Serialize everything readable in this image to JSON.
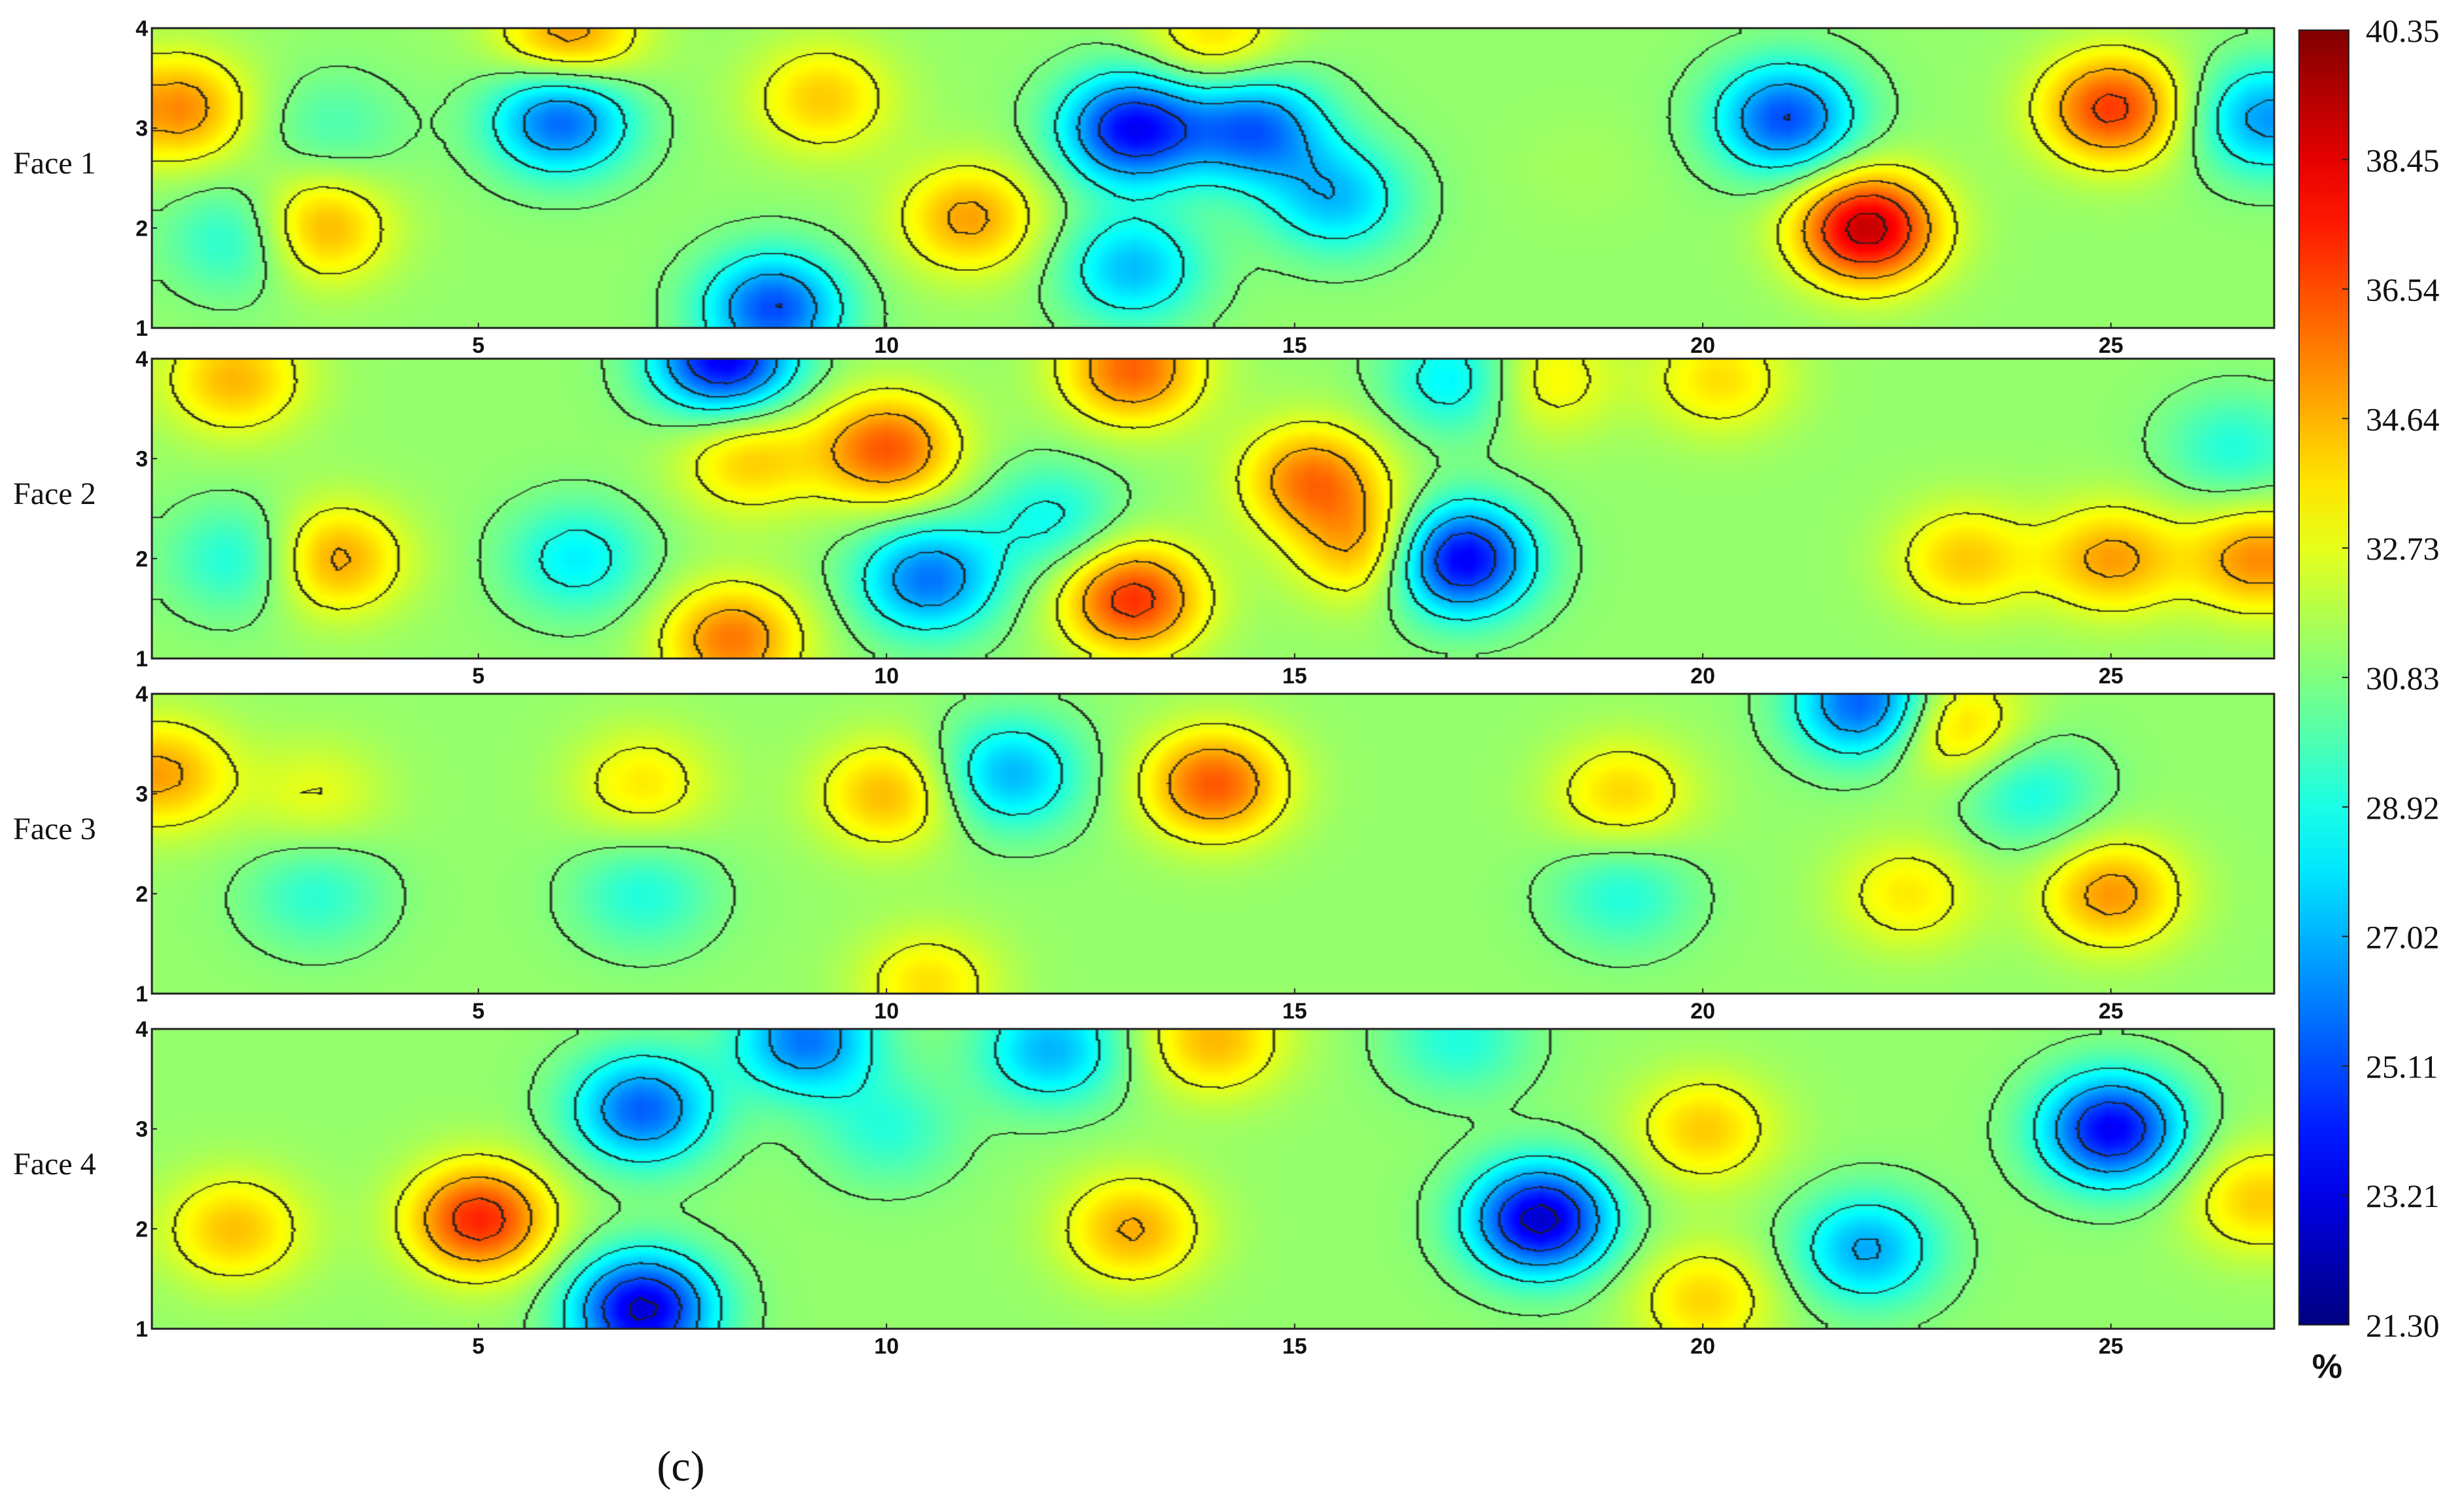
{
  "chart_data": {
    "type": "heatmap",
    "style": "filled-contour",
    "caption": "(c)",
    "unit": "%",
    "x_range": [
      1,
      27
    ],
    "y_range": [
      1,
      4
    ],
    "x_ticks": [
      5,
      10,
      15,
      20,
      25
    ],
    "y_ticks": [
      1,
      2,
      3,
      4
    ],
    "colorbar": {
      "min": 21.3,
      "max": 40.35,
      "ticks": [
        "40.35",
        "38.45",
        "36.54",
        "34.64",
        "32.73",
        "30.83",
        "28.92",
        "27.02",
        "25.11",
        "23.21",
        "21.30"
      ],
      "colormap": "jet"
    },
    "base_value": 31.2,
    "panels": [
      {
        "name": "Face 1",
        "features": [
          {
            "x": 1.3,
            "y": 3.2,
            "value": 35.5
          },
          {
            "x": 6.1,
            "y": 3.9,
            "value": 35.5
          },
          {
            "x": 9.2,
            "y": 3.3,
            "value": 34.2
          },
          {
            "x": 14.0,
            "y": 3.9,
            "value": 34.0
          },
          {
            "x": 2.1,
            "y": 1.9,
            "value": 28.5
          },
          {
            "x": 3.0,
            "y": 2.0,
            "value": 35.2
          },
          {
            "x": 3.2,
            "y": 3.0,
            "value": 29.8
          },
          {
            "x": 6.0,
            "y": 3.1,
            "value": 25.2
          },
          {
            "x": 8.6,
            "y": 1.2,
            "value": 25.0
          },
          {
            "x": 11.0,
            "y": 2.1,
            "value": 35.0
          },
          {
            "x": 13.0,
            "y": 3.0,
            "value": 23.6
          },
          {
            "x": 13.0,
            "y": 1.6,
            "value": 27.2
          },
          {
            "x": 14.5,
            "y": 3.0,
            "value": 25.5
          },
          {
            "x": 15.5,
            "y": 2.3,
            "value": 27.3
          },
          {
            "x": 21.0,
            "y": 3.1,
            "value": 25.0
          },
          {
            "x": 22.0,
            "y": 2.0,
            "value": 39.2
          },
          {
            "x": 25.0,
            "y": 3.2,
            "value": 37.0
          },
          {
            "x": 26.9,
            "y": 3.1,
            "value": 26.5
          },
          {
            "x": 18.5,
            "y": 2.6,
            "value": 31.5
          }
        ]
      },
      {
        "name": "Face 2",
        "features": [
          {
            "x": 2.0,
            "y": 3.8,
            "value": 34.6
          },
          {
            "x": 2.1,
            "y": 2.0,
            "value": 28.6
          },
          {
            "x": 3.2,
            "y": 2.0,
            "value": 35.2
          },
          {
            "x": 6.2,
            "y": 2.0,
            "value": 28.2
          },
          {
            "x": 8.0,
            "y": 4.0,
            "value": 23.2
          },
          {
            "x": 8.1,
            "y": 1.2,
            "value": 35.8
          },
          {
            "x": 8.3,
            "y": 3.0,
            "value": 34.2
          },
          {
            "x": 10.0,
            "y": 3.1,
            "value": 36.4
          },
          {
            "x": 10.5,
            "y": 1.8,
            "value": 25.8
          },
          {
            "x": 12.0,
            "y": 2.4,
            "value": 28.6
          },
          {
            "x": 13.0,
            "y": 1.6,
            "value": 37.2
          },
          {
            "x": 13.0,
            "y": 3.9,
            "value": 36.2
          },
          {
            "x": 15.2,
            "y": 2.8,
            "value": 35.8
          },
          {
            "x": 15.9,
            "y": 2.1,
            "value": 35.0
          },
          {
            "x": 17.0,
            "y": 2.0,
            "value": 22.8
          },
          {
            "x": 17.0,
            "y": 3.8,
            "value": 27.8
          },
          {
            "x": 18.0,
            "y": 3.8,
            "value": 33.8
          },
          {
            "x": 20.2,
            "y": 3.8,
            "value": 33.8
          },
          {
            "x": 23.2,
            "y": 2.0,
            "value": 34.2
          },
          {
            "x": 25.0,
            "y": 2.0,
            "value": 35.0
          },
          {
            "x": 26.8,
            "y": 2.0,
            "value": 35.4
          },
          {
            "x": 26.5,
            "y": 3.1,
            "value": 29.0
          }
        ]
      },
      {
        "name": "Face 3",
        "features": [
          {
            "x": 1.1,
            "y": 3.2,
            "value": 35.0
          },
          {
            "x": 3.0,
            "y": 3.0,
            "value": 32.8
          },
          {
            "x": 7.0,
            "y": 3.1,
            "value": 33.6
          },
          {
            "x": 10.0,
            "y": 3.0,
            "value": 34.6
          },
          {
            "x": 11.5,
            "y": 3.2,
            "value": 27.0
          },
          {
            "x": 14.0,
            "y": 3.1,
            "value": 36.4
          },
          {
            "x": 19.0,
            "y": 3.0,
            "value": 34.0
          },
          {
            "x": 22.0,
            "y": 3.9,
            "value": 24.8
          },
          {
            "x": 23.0,
            "y": 3.7,
            "value": 34.8
          },
          {
            "x": 25.0,
            "y": 2.0,
            "value": 35.2
          },
          {
            "x": 22.5,
            "y": 2.0,
            "value": 33.6
          },
          {
            "x": 19.0,
            "y": 2.0,
            "value": 29.0
          },
          {
            "x": 7.0,
            "y": 2.0,
            "value": 29.0
          },
          {
            "x": 3.0,
            "y": 2.0,
            "value": 29.2
          },
          {
            "x": 24.0,
            "y": 3.0,
            "value": 28.8
          },
          {
            "x": 10.5,
            "y": 1.1,
            "value": 33.8
          }
        ]
      },
      {
        "name": "Face 4",
        "features": [
          {
            "x": 5.0,
            "y": 2.1,
            "value": 37.4
          },
          {
            "x": 7.0,
            "y": 3.2,
            "value": 25.4
          },
          {
            "x": 7.0,
            "y": 1.2,
            "value": 22.8
          },
          {
            "x": 9.0,
            "y": 3.9,
            "value": 25.8
          },
          {
            "x": 10.0,
            "y": 3.0,
            "value": 29.2
          },
          {
            "x": 13.0,
            "y": 2.0,
            "value": 34.8
          },
          {
            "x": 14.0,
            "y": 3.9,
            "value": 34.6
          },
          {
            "x": 18.0,
            "y": 2.1,
            "value": 22.6
          },
          {
            "x": 20.0,
            "y": 3.0,
            "value": 34.2
          },
          {
            "x": 20.0,
            "y": 1.3,
            "value": 34.0
          },
          {
            "x": 22.0,
            "y": 1.8,
            "value": 26.8
          },
          {
            "x": 25.0,
            "y": 3.0,
            "value": 23.4
          },
          {
            "x": 26.8,
            "y": 2.3,
            "value": 34.2
          },
          {
            "x": 2.0,
            "y": 2.0,
            "value": 34.4
          },
          {
            "x": 12.0,
            "y": 3.8,
            "value": 27.0
          },
          {
            "x": 17.0,
            "y": 3.9,
            "value": 29.0
          }
        ]
      }
    ]
  }
}
